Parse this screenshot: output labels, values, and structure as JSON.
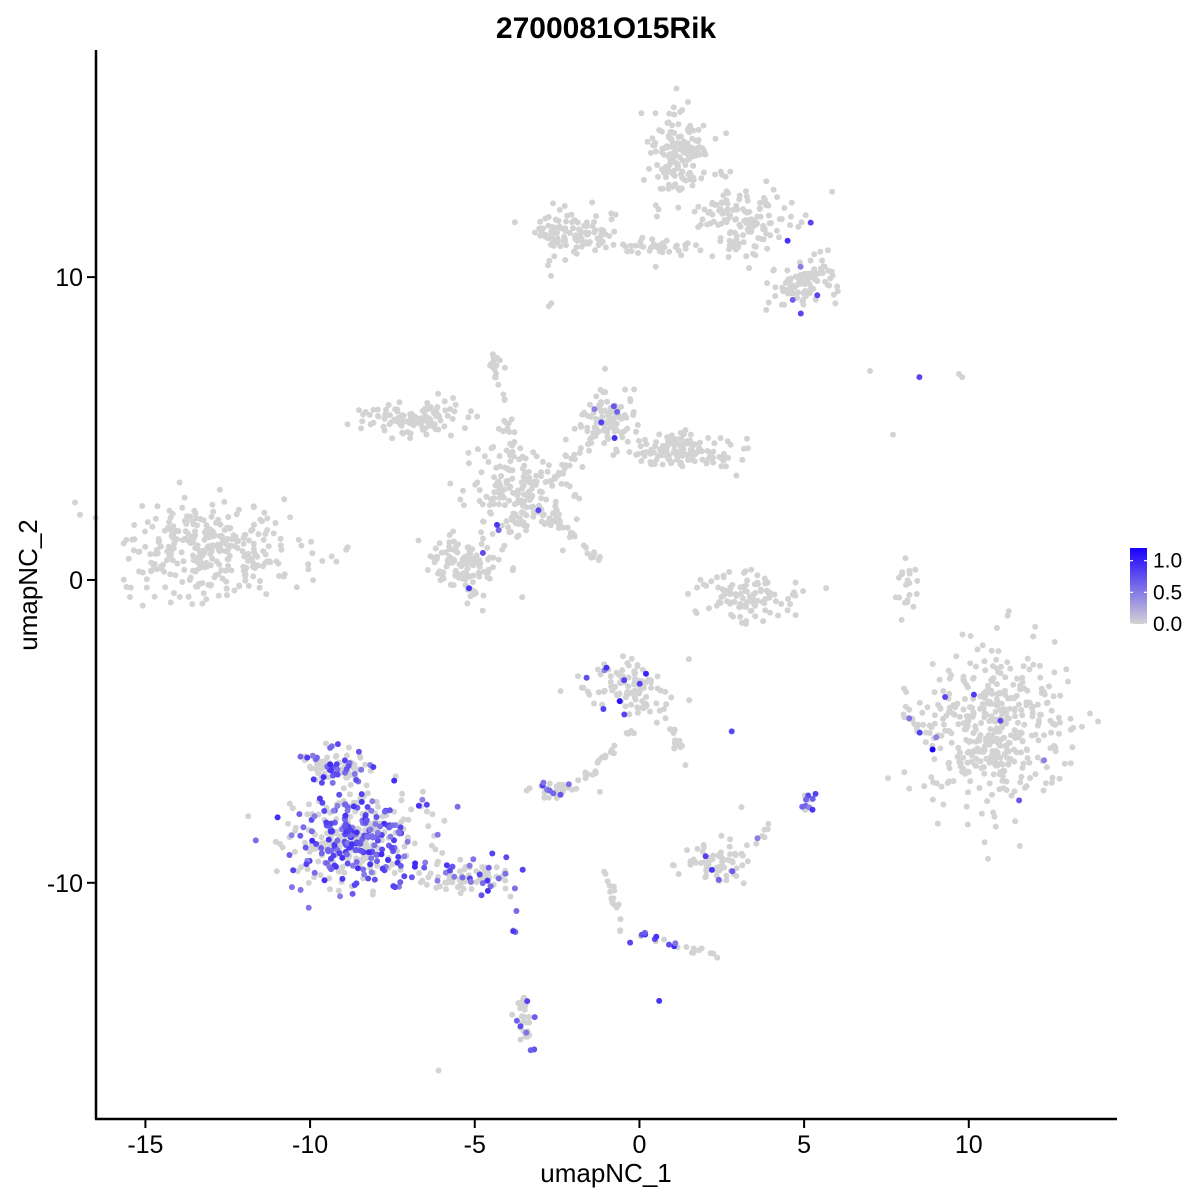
{
  "chart_data": {
    "type": "scatter",
    "title": "2700081O15Rik",
    "xlabel": "umapNC_1",
    "ylabel": "umapNC_2",
    "xlim": [
      -16.5,
      14.5
    ],
    "ylim": [
      -17.8,
      17.5
    ],
    "x_ticks": [
      -15,
      -10,
      -5,
      0,
      5,
      10
    ],
    "x_tick_labels": [
      "-15",
      "-10",
      "-5",
      "0",
      "5",
      "10"
    ],
    "y_ticks": [
      -10,
      0,
      10
    ],
    "y_tick_labels": [
      "-10",
      "0",
      "10"
    ],
    "grid": false,
    "legend": {
      "placement": "right",
      "type": "colorbar",
      "tick_values": [
        0.0,
        0.5,
        1.0
      ],
      "tick_labels": [
        "0.0",
        "0.5",
        "1.0"
      ],
      "min": 0.0,
      "max": 1.2
    },
    "colors": {
      "low": "#d3d3d3",
      "high": "#1a00ff"
    },
    "clusters": [
      {
        "cx": -13.0,
        "cy": 1.0,
        "rx": 2.6,
        "ry": 1.4,
        "n": 320,
        "expr_rate": 0.0,
        "seed": 1
      },
      {
        "cx": 1.2,
        "cy": 14.0,
        "rx": 0.9,
        "ry": 1.4,
        "n": 160,
        "expr_rate": 0.0,
        "seed": 2
      },
      {
        "cx": 3.2,
        "cy": 11.8,
        "rx": 1.5,
        "ry": 1.0,
        "n": 140,
        "expr_rate": 0.02,
        "seed": 3
      },
      {
        "cx": 5.0,
        "cy": 9.8,
        "rx": 1.0,
        "ry": 0.8,
        "n": 90,
        "expr_rate": 0.03,
        "seed": 4
      },
      {
        "cx": -2.0,
        "cy": 11.5,
        "rx": 1.2,
        "ry": 0.6,
        "n": 110,
        "expr_rate": 0.0,
        "seed": 5
      },
      {
        "cx": 0.3,
        "cy": 11.0,
        "rx": 1.3,
        "ry": 0.3,
        "n": 40,
        "expr_rate": 0.0,
        "seed": 6
      },
      {
        "cx": -6.8,
        "cy": 5.3,
        "rx": 1.5,
        "ry": 0.6,
        "n": 110,
        "expr_rate": 0.0,
        "seed": 7
      },
      {
        "cx": -1.0,
        "cy": 5.3,
        "rx": 0.8,
        "ry": 0.9,
        "n": 90,
        "expr_rate": 0.02,
        "seed": 8
      },
      {
        "cx": 1.3,
        "cy": 4.3,
        "rx": 1.6,
        "ry": 0.6,
        "n": 130,
        "expr_rate": 0.0,
        "seed": 9
      },
      {
        "cx": -3.7,
        "cy": 2.8,
        "rx": 1.4,
        "ry": 1.6,
        "n": 200,
        "expr_rate": 0.02,
        "seed": 10
      },
      {
        "cx": -5.4,
        "cy": 0.5,
        "rx": 1.0,
        "ry": 0.9,
        "n": 120,
        "expr_rate": 0.05,
        "seed": 11
      },
      {
        "cx": -4.4,
        "cy": 7.2,
        "rx": 0.2,
        "ry": 0.3,
        "n": 12,
        "expr_rate": 0.2,
        "seed": 12
      },
      {
        "cx": 3.3,
        "cy": -0.5,
        "rx": 1.2,
        "ry": 0.7,
        "n": 110,
        "expr_rate": 0.01,
        "seed": 13
      },
      {
        "cx": 10.8,
        "cy": -4.8,
        "rx": 2.0,
        "ry": 2.3,
        "n": 420,
        "expr_rate": 0.01,
        "seed": 14
      },
      {
        "cx": 8.1,
        "cy": -0.3,
        "rx": 0.3,
        "ry": 0.9,
        "n": 20,
        "expr_rate": 0.0,
        "seed": 15
      },
      {
        "cx": -0.3,
        "cy": -3.6,
        "rx": 1.2,
        "ry": 0.9,
        "n": 110,
        "expr_rate": 0.08,
        "seed": 16
      },
      {
        "cx": -8.6,
        "cy": -8.6,
        "rx": 1.9,
        "ry": 1.5,
        "n": 420,
        "expr_rate": 0.45,
        "seed": 17
      },
      {
        "cx": -5.2,
        "cy": -9.8,
        "rx": 1.5,
        "ry": 0.5,
        "n": 90,
        "expr_rate": 0.3,
        "seed": 18
      },
      {
        "cx": -2.6,
        "cy": -6.9,
        "rx": 0.6,
        "ry": 0.3,
        "n": 35,
        "expr_rate": 0.2,
        "seed": 19
      },
      {
        "cx": 2.4,
        "cy": -9.4,
        "rx": 0.9,
        "ry": 0.6,
        "n": 70,
        "expr_rate": 0.04,
        "seed": 20
      },
      {
        "cx": -3.5,
        "cy": -14.5,
        "rx": 0.3,
        "ry": 0.9,
        "n": 30,
        "expr_rate": 0.3,
        "seed": 21
      },
      {
        "cx": 5.1,
        "cy": -7.3,
        "rx": 0.2,
        "ry": 0.3,
        "n": 12,
        "expr_rate": 0.6,
        "seed": 22
      },
      {
        "cx": -9.2,
        "cy": -6.2,
        "rx": 0.9,
        "ry": 0.6,
        "n": 80,
        "expr_rate": 0.35,
        "seed": 23
      }
    ],
    "paths": [
      {
        "from": [
          -4.4,
          7.0
        ],
        "to": [
          -3.5,
          3.0
        ],
        "n": 20,
        "expr_rate": 0.0
      },
      {
        "from": [
          -2.7,
          2.2
        ],
        "to": [
          -1.2,
          0.6
        ],
        "n": 30,
        "expr_rate": 0.0
      },
      {
        "from": [
          -2.5,
          3.5
        ],
        "to": [
          -0.5,
          5.5
        ],
        "n": 25,
        "expr_rate": 0.0
      },
      {
        "from": [
          -2.6,
          12.0
        ],
        "to": [
          -2.8,
          8.6
        ],
        "n": 8,
        "expr_rate": 0.0
      },
      {
        "from": [
          -0.2,
          -5.0
        ],
        "to": [
          -2.0,
          -6.9
        ],
        "n": 25,
        "expr_rate": 0.05
      },
      {
        "from": [
          1.0,
          -4.8
        ],
        "to": [
          1.3,
          -6.0
        ],
        "n": 12,
        "expr_rate": 0.0
      },
      {
        "from": [
          -1.0,
          -9.5
        ],
        "to": [
          -0.4,
          -12.0
        ],
        "n": 18,
        "expr_rate": 0.15
      },
      {
        "from": [
          0.0,
          -11.7
        ],
        "to": [
          2.5,
          -12.5
        ],
        "n": 22,
        "expr_rate": 0.4
      },
      {
        "from": [
          -3.8,
          -10.5
        ],
        "to": [
          -3.7,
          -11.8
        ],
        "n": 5,
        "expr_rate": 0.3
      },
      {
        "from": [
          8.0,
          -4.3
        ],
        "to": [
          9.0,
          -5.5
        ],
        "n": 14,
        "expr_rate": 0.05
      },
      {
        "from": [
          4.0,
          -8.0
        ],
        "to": [
          3.3,
          -8.9
        ],
        "n": 8,
        "expr_rate": 0.2
      }
    ],
    "singles": [
      {
        "x": 8.5,
        "y": 6.7,
        "v": 0.8
      },
      {
        "x": 7.0,
        "y": 6.9,
        "v": 0.0
      },
      {
        "x": 9.7,
        "y": 6.8,
        "v": 0.0
      },
      {
        "x": 9.8,
        "y": 6.7,
        "v": 0.0
      },
      {
        "x": 7.7,
        "y": 4.8,
        "v": 0.0
      },
      {
        "x": 8.9,
        "y": -5.6,
        "v": 1.2
      },
      {
        "x": 4.5,
        "y": 11.2,
        "v": 0.9
      },
      {
        "x": 5.2,
        "y": 11.8,
        "v": 0.8
      },
      {
        "x": 4.9,
        "y": 8.8,
        "v": 0.8
      },
      {
        "x": 5.4,
        "y": 9.4,
        "v": 0.8
      },
      {
        "x": -0.6,
        "y": -4.0,
        "v": 1.1
      },
      {
        "x": 0.2,
        "y": -3.1,
        "v": 1.0
      },
      {
        "x": -1.0,
        "y": -2.9,
        "v": 0.9
      },
      {
        "x": 2.8,
        "y": -5.0,
        "v": 0.8
      },
      {
        "x": 0.6,
        "y": -13.9,
        "v": 0.9
      },
      {
        "x": -6.1,
        "y": -16.2,
        "v": 0.0
      },
      {
        "x": 3.1,
        "y": -7.5,
        "v": 0.0
      },
      {
        "x": -1.2,
        "y": -7.0,
        "v": 0.0
      }
    ]
  }
}
